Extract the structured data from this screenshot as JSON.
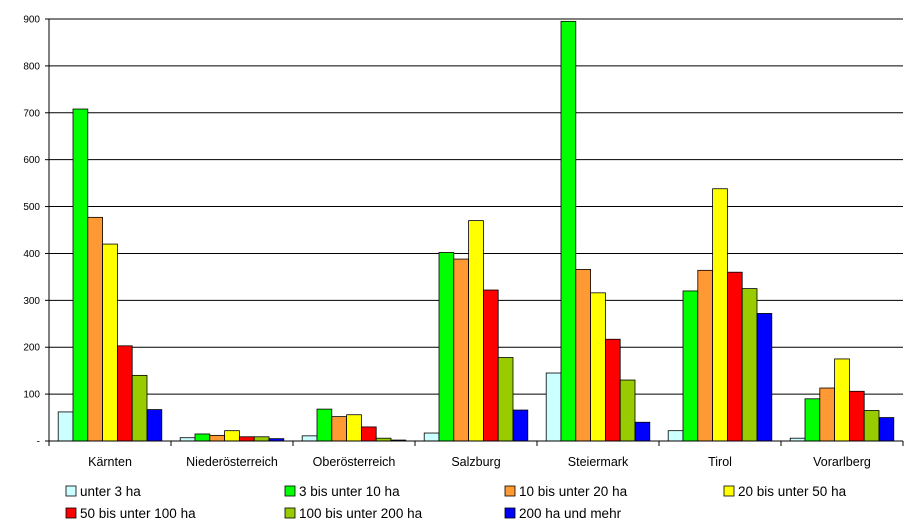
{
  "chart_data": {
    "type": "bar",
    "title": "",
    "xlabel": "",
    "ylabel": "",
    "ylim": [
      0,
      900
    ],
    "ytick_values": [
      0,
      100,
      200,
      300,
      400,
      500,
      600,
      700,
      800,
      900
    ],
    "ytick_labels": [
      "-",
      "100",
      "200",
      "300",
      "400",
      "500",
      "600",
      "700",
      "800",
      "900"
    ],
    "grid": true,
    "legend_position": "bottom",
    "categories": [
      "Kärnten",
      "Niederösterreich",
      "Oberösterreich",
      "Salzburg",
      "Steiermark",
      "Tirol",
      "Vorarlberg"
    ],
    "series": [
      {
        "name": "unter 3 ha",
        "color": "#ccffff",
        "values": [
          62,
          7,
          11,
          17,
          145,
          22,
          6
        ]
      },
      {
        "name": "3 bis unter 10 ha",
        "color": "#00ff00",
        "values": [
          708,
          15,
          68,
          402,
          895,
          320,
          90
        ]
      },
      {
        "name": "10 bis unter 20 ha",
        "color": "#ff9933",
        "values": [
          477,
          12,
          52,
          388,
          366,
          364,
          113
        ]
      },
      {
        "name": "20 bis unter 50 ha",
        "color": "#ffff00",
        "values": [
          420,
          22,
          56,
          470,
          316,
          538,
          175
        ]
      },
      {
        "name": "50 bis unter 100 ha",
        "color": "#ff0000",
        "values": [
          203,
          9,
          30,
          322,
          217,
          360,
          106
        ]
      },
      {
        "name": "100 bis unter 200 ha",
        "color": "#99cc00",
        "values": [
          140,
          9,
          6,
          178,
          130,
          325,
          65
        ]
      },
      {
        "name": "200 ha und mehr",
        "color": "#0000ff",
        "values": [
          67,
          5,
          2,
          66,
          40,
          272,
          50
        ]
      }
    ]
  }
}
